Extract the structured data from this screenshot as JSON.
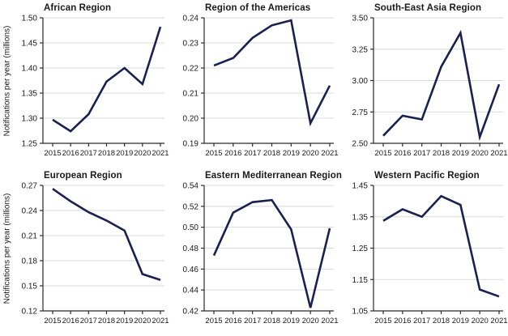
{
  "figure": {
    "y_axis_label": "Notifications per year (millions)"
  },
  "style": {
    "line_color": "#1a2050",
    "grid_color": "#d9d9d9",
    "axis_color": "#2b2b2b",
    "text_color": "#1a1a1a",
    "background": "#ffffff"
  },
  "chart_data": [
    {
      "type": "line",
      "title": "African Region",
      "x": [
        2015,
        2016,
        2017,
        2018,
        2019,
        2020,
        2021
      ],
      "values": [
        1.297,
        1.274,
        1.308,
        1.373,
        1.4,
        1.368,
        1.482
      ],
      "ylim": [
        1.25,
        1.5
      ],
      "yticks": [
        1.25,
        1.3,
        1.35,
        1.4,
        1.45,
        1.5
      ],
      "ylabel": "Notifications per year (millions)",
      "xlabel": "",
      "grid": true,
      "legend": false
    },
    {
      "type": "line",
      "title": "Region of the Americas",
      "x": [
        2015,
        2016,
        2017,
        2018,
        2019,
        2020,
        2021
      ],
      "values": [
        0.221,
        0.224,
        0.232,
        0.237,
        0.239,
        0.198,
        0.213
      ],
      "ylim": [
        0.19,
        0.24
      ],
      "yticks": [
        0.19,
        0.2,
        0.21,
        0.22,
        0.23,
        0.24
      ],
      "ylabel": "",
      "xlabel": "",
      "grid": true,
      "legend": false
    },
    {
      "type": "line",
      "title": "South-East Asia Region",
      "x": [
        2015,
        2016,
        2017,
        2018,
        2019,
        2020,
        2021
      ],
      "values": [
        2.56,
        2.72,
        2.69,
        3.11,
        3.38,
        2.55,
        2.97
      ],
      "ylim": [
        2.5,
        3.5
      ],
      "yticks": [
        2.5,
        2.75,
        3.0,
        3.25,
        3.5
      ],
      "ylabel": "",
      "xlabel": "",
      "grid": true,
      "legend": false
    },
    {
      "type": "line",
      "title": "European Region",
      "x": [
        2015,
        2016,
        2017,
        2018,
        2019,
        2020,
        2021
      ],
      "values": [
        0.266,
        0.251,
        0.238,
        0.228,
        0.216,
        0.164,
        0.157
      ],
      "ylim": [
        0.12,
        0.27
      ],
      "yticks": [
        0.12,
        0.15,
        0.18,
        0.21,
        0.24,
        0.27
      ],
      "ylabel": "Notifications per year (millions)",
      "xlabel": "",
      "grid": true,
      "legend": false
    },
    {
      "type": "line",
      "title": "Eastern Mediterranean Region",
      "x": [
        2015,
        2016,
        2017,
        2018,
        2019,
        2020,
        2021
      ],
      "values": [
        0.473,
        0.514,
        0.524,
        0.526,
        0.498,
        0.423,
        0.499
      ],
      "ylim": [
        0.42,
        0.54
      ],
      "yticks": [
        0.42,
        0.44,
        0.46,
        0.48,
        0.5,
        0.52,
        0.54
      ],
      "ylabel": "",
      "xlabel": "",
      "grid": true,
      "legend": false
    },
    {
      "type": "line",
      "title": "Western Pacific Region",
      "x": [
        2015,
        2016,
        2017,
        2018,
        2019,
        2020,
        2021
      ],
      "values": [
        1.337,
        1.374,
        1.35,
        1.416,
        1.388,
        1.118,
        1.096
      ],
      "ylim": [
        1.05,
        1.45
      ],
      "yticks": [
        1.05,
        1.15,
        1.25,
        1.35,
        1.45
      ],
      "ylabel": "",
      "xlabel": "",
      "grid": true,
      "legend": false
    }
  ]
}
